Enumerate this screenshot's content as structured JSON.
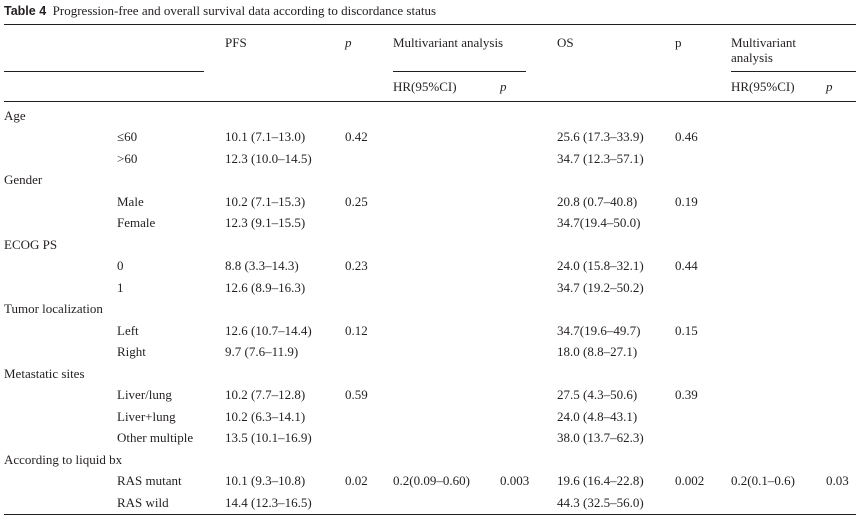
{
  "table": {
    "caption_label": "Table 4",
    "caption_text": "Progression-free and overall survival data according to discordance status",
    "headers": {
      "pfs": "PFS",
      "p1": "p",
      "multi1": "Multivariant analysis",
      "os": "OS",
      "p2": "p",
      "multi2_line1": "Multivariant",
      "multi2_line2": "analysis",
      "hr1": "HR(95%CI)",
      "hr1_p": "p",
      "hr2": "HR(95%CI)",
      "hr2_p": "p"
    },
    "rows": [
      {
        "group": "Age"
      },
      {
        "sub": "≤60",
        "pfs": "10.1 (7.1–13.0)",
        "p_pfs": "0.42",
        "hr_pfs": "",
        "hrp_pfs": "",
        "os": "25.6 (17.3–33.9)",
        "p_os": "0.46",
        "hr_os": "",
        "hrp_os": ""
      },
      {
        "sub": ">60",
        "pfs": "12.3 (10.0–14.5)",
        "p_pfs": "",
        "hr_pfs": "",
        "hrp_pfs": "",
        "os": "34.7 (12.3–57.1)",
        "p_os": "",
        "hr_os": "",
        "hrp_os": ""
      },
      {
        "group": "Gender"
      },
      {
        "sub": "Male",
        "pfs": "10.2 (7.1–15.3)",
        "p_pfs": "0.25",
        "hr_pfs": "",
        "hrp_pfs": "",
        "os": "20.8 (0.7–40.8)",
        "p_os": "0.19",
        "hr_os": "",
        "hrp_os": ""
      },
      {
        "sub": "Female",
        "pfs": "12.3 (9.1–15.5)",
        "p_pfs": "",
        "hr_pfs": "",
        "hrp_pfs": "",
        "os": "34.7(19.4–50.0)",
        "p_os": "",
        "hr_os": "",
        "hrp_os": ""
      },
      {
        "group": "ECOG PS"
      },
      {
        "sub": "0",
        "pfs": "8.8 (3.3–14.3)",
        "p_pfs": "0.23",
        "hr_pfs": "",
        "hrp_pfs": "",
        "os": "24.0 (15.8–32.1)",
        "p_os": "0.44",
        "hr_os": "",
        "hrp_os": ""
      },
      {
        "sub": "1",
        "pfs": "12.6 (8.9–16.3)",
        "p_pfs": "",
        "hr_pfs": "",
        "hrp_pfs": "",
        "os": "34.7 (19.2–50.2)",
        "p_os": "",
        "hr_os": "",
        "hrp_os": ""
      },
      {
        "group": "Tumor localization"
      },
      {
        "sub": "Left",
        "pfs": "12.6 (10.7–14.4)",
        "p_pfs": "0.12",
        "hr_pfs": "",
        "hrp_pfs": "",
        "os": "34.7(19.6–49.7)",
        "p_os": "0.15",
        "hr_os": "",
        "hrp_os": ""
      },
      {
        "sub": "Right",
        "pfs": "9.7 (7.6–11.9)",
        "p_pfs": "",
        "hr_pfs": "",
        "hrp_pfs": "",
        "os": "18.0 (8.8–27.1)",
        "p_os": "",
        "hr_os": "",
        "hrp_os": ""
      },
      {
        "group": "Metastatic sites"
      },
      {
        "sub": "Liver/lung",
        "pfs": "10.2 (7.7–12.8)",
        "p_pfs": "0.59",
        "hr_pfs": "",
        "hrp_pfs": "",
        "os": "27.5 (4.3–50.6)",
        "p_os": "0.39",
        "hr_os": "",
        "hrp_os": ""
      },
      {
        "sub": "Liver+lung",
        "pfs": "10.2 (6.3–14.1)",
        "p_pfs": "",
        "hr_pfs": "",
        "hrp_pfs": "",
        "os": "24.0 (4.8–43.1)",
        "p_os": "",
        "hr_os": "",
        "hrp_os": ""
      },
      {
        "sub": "Other multiple",
        "pfs": "13.5 (10.1–16.9)",
        "p_pfs": "",
        "hr_pfs": "",
        "hrp_pfs": "",
        "os": "38.0 (13.7–62.3)",
        "p_os": "",
        "hr_os": "",
        "hrp_os": ""
      },
      {
        "group": "According to liquid bx"
      },
      {
        "sub": "RAS mutant",
        "pfs": "10.1 (9.3–10.8)",
        "p_pfs": "0.02",
        "hr_pfs": "0.2(0.09–0.60)",
        "hrp_pfs": "0.003",
        "os": "19.6 (16.4–22.8)",
        "p_os": "0.002",
        "hr_os": "0.2(0.1–0.6)",
        "hrp_os": "0.03"
      },
      {
        "sub": "RAS wild",
        "pfs": "14.4 (12.3–16.5)",
        "p_pfs": "",
        "hr_pfs": "",
        "hrp_pfs": "",
        "os": "44.3 (32.5–56.0)",
        "p_os": "",
        "hr_os": "",
        "hrp_os": ""
      }
    ]
  }
}
